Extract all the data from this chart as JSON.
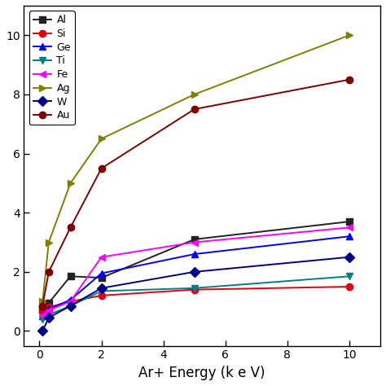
{
  "xlabel": "Ar+ Energy (k e V)",
  "ylabel": "",
  "xlim": [
    -0.5,
    11
  ],
  "ylim": [
    -0.5,
    11
  ],
  "xticks": [
    0,
    2,
    4,
    6,
    8,
    10
  ],
  "yticks": [
    0,
    2,
    4,
    6,
    8,
    10
  ],
  "series": [
    {
      "label": "Al",
      "color": "#222222",
      "marker": "s",
      "x": [
        0.1,
        0.3,
        1.0,
        2.0,
        5.0,
        10.0
      ],
      "y": [
        0.75,
        0.95,
        1.85,
        1.8,
        3.1,
        3.7
      ]
    },
    {
      "label": "Si",
      "color": "#e8000d",
      "marker": "o",
      "x": [
        0.1,
        0.3,
        1.0,
        2.0,
        5.0,
        10.0
      ],
      "y": [
        0.65,
        0.8,
        1.0,
        1.2,
        1.4,
        1.5
      ]
    },
    {
      "label": "Ge",
      "color": "#0000ff",
      "marker": "^",
      "x": [
        0.1,
        0.3,
        1.0,
        2.0,
        5.0,
        10.0
      ],
      "y": [
        0.5,
        0.75,
        1.05,
        1.95,
        2.6,
        3.2
      ]
    },
    {
      "label": "Ti",
      "color": "#008080",
      "marker": "v",
      "x": [
        0.1,
        0.3,
        1.0,
        2.0,
        5.0,
        10.0
      ],
      "y": [
        0.4,
        0.55,
        0.85,
        1.35,
        1.45,
        1.85
      ]
    },
    {
      "label": "Fe",
      "color": "#ff00ff",
      "marker": "<",
      "x": [
        0.1,
        0.3,
        1.0,
        2.0,
        5.0,
        10.0
      ],
      "y": [
        0.55,
        0.7,
        1.0,
        2.5,
        3.0,
        3.5
      ]
    },
    {
      "label": "Ag",
      "color": "#808000",
      "marker": ">",
      "x": [
        0.1,
        0.3,
        1.0,
        2.0,
        5.0,
        10.0
      ],
      "y": [
        1.0,
        3.0,
        5.0,
        6.5,
        8.0,
        10.0
      ]
    },
    {
      "label": "W",
      "color": "#00008B",
      "marker": "D",
      "x": [
        0.1,
        0.3,
        1.0,
        2.0,
        5.0,
        10.0
      ],
      "y": [
        0.0,
        0.45,
        0.85,
        1.45,
        2.0,
        2.5
      ]
    },
    {
      "label": "Au",
      "color": "#800000",
      "marker": "o",
      "x": [
        0.1,
        0.3,
        1.0,
        2.0,
        5.0,
        10.0
      ],
      "y": [
        0.85,
        2.0,
        3.5,
        5.5,
        7.5,
        8.5
      ]
    }
  ],
  "legend_loc": "upper left",
  "markersize": 6,
  "linewidth": 1.4,
  "background_color": "#ffffff",
  "figure_background": "#ffffff"
}
